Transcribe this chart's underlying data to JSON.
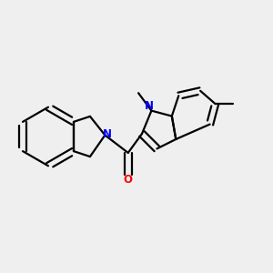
{
  "background_color": "#efefef",
  "bond_color": "#000000",
  "N_color": "#0000ff",
  "O_color": "#ff0000",
  "line_width": 1.6,
  "figsize": [
    3.0,
    3.0
  ],
  "dpi": 100,
  "xlim": [
    0.0,
    1.0
  ],
  "ylim": [
    0.1,
    0.9
  ]
}
